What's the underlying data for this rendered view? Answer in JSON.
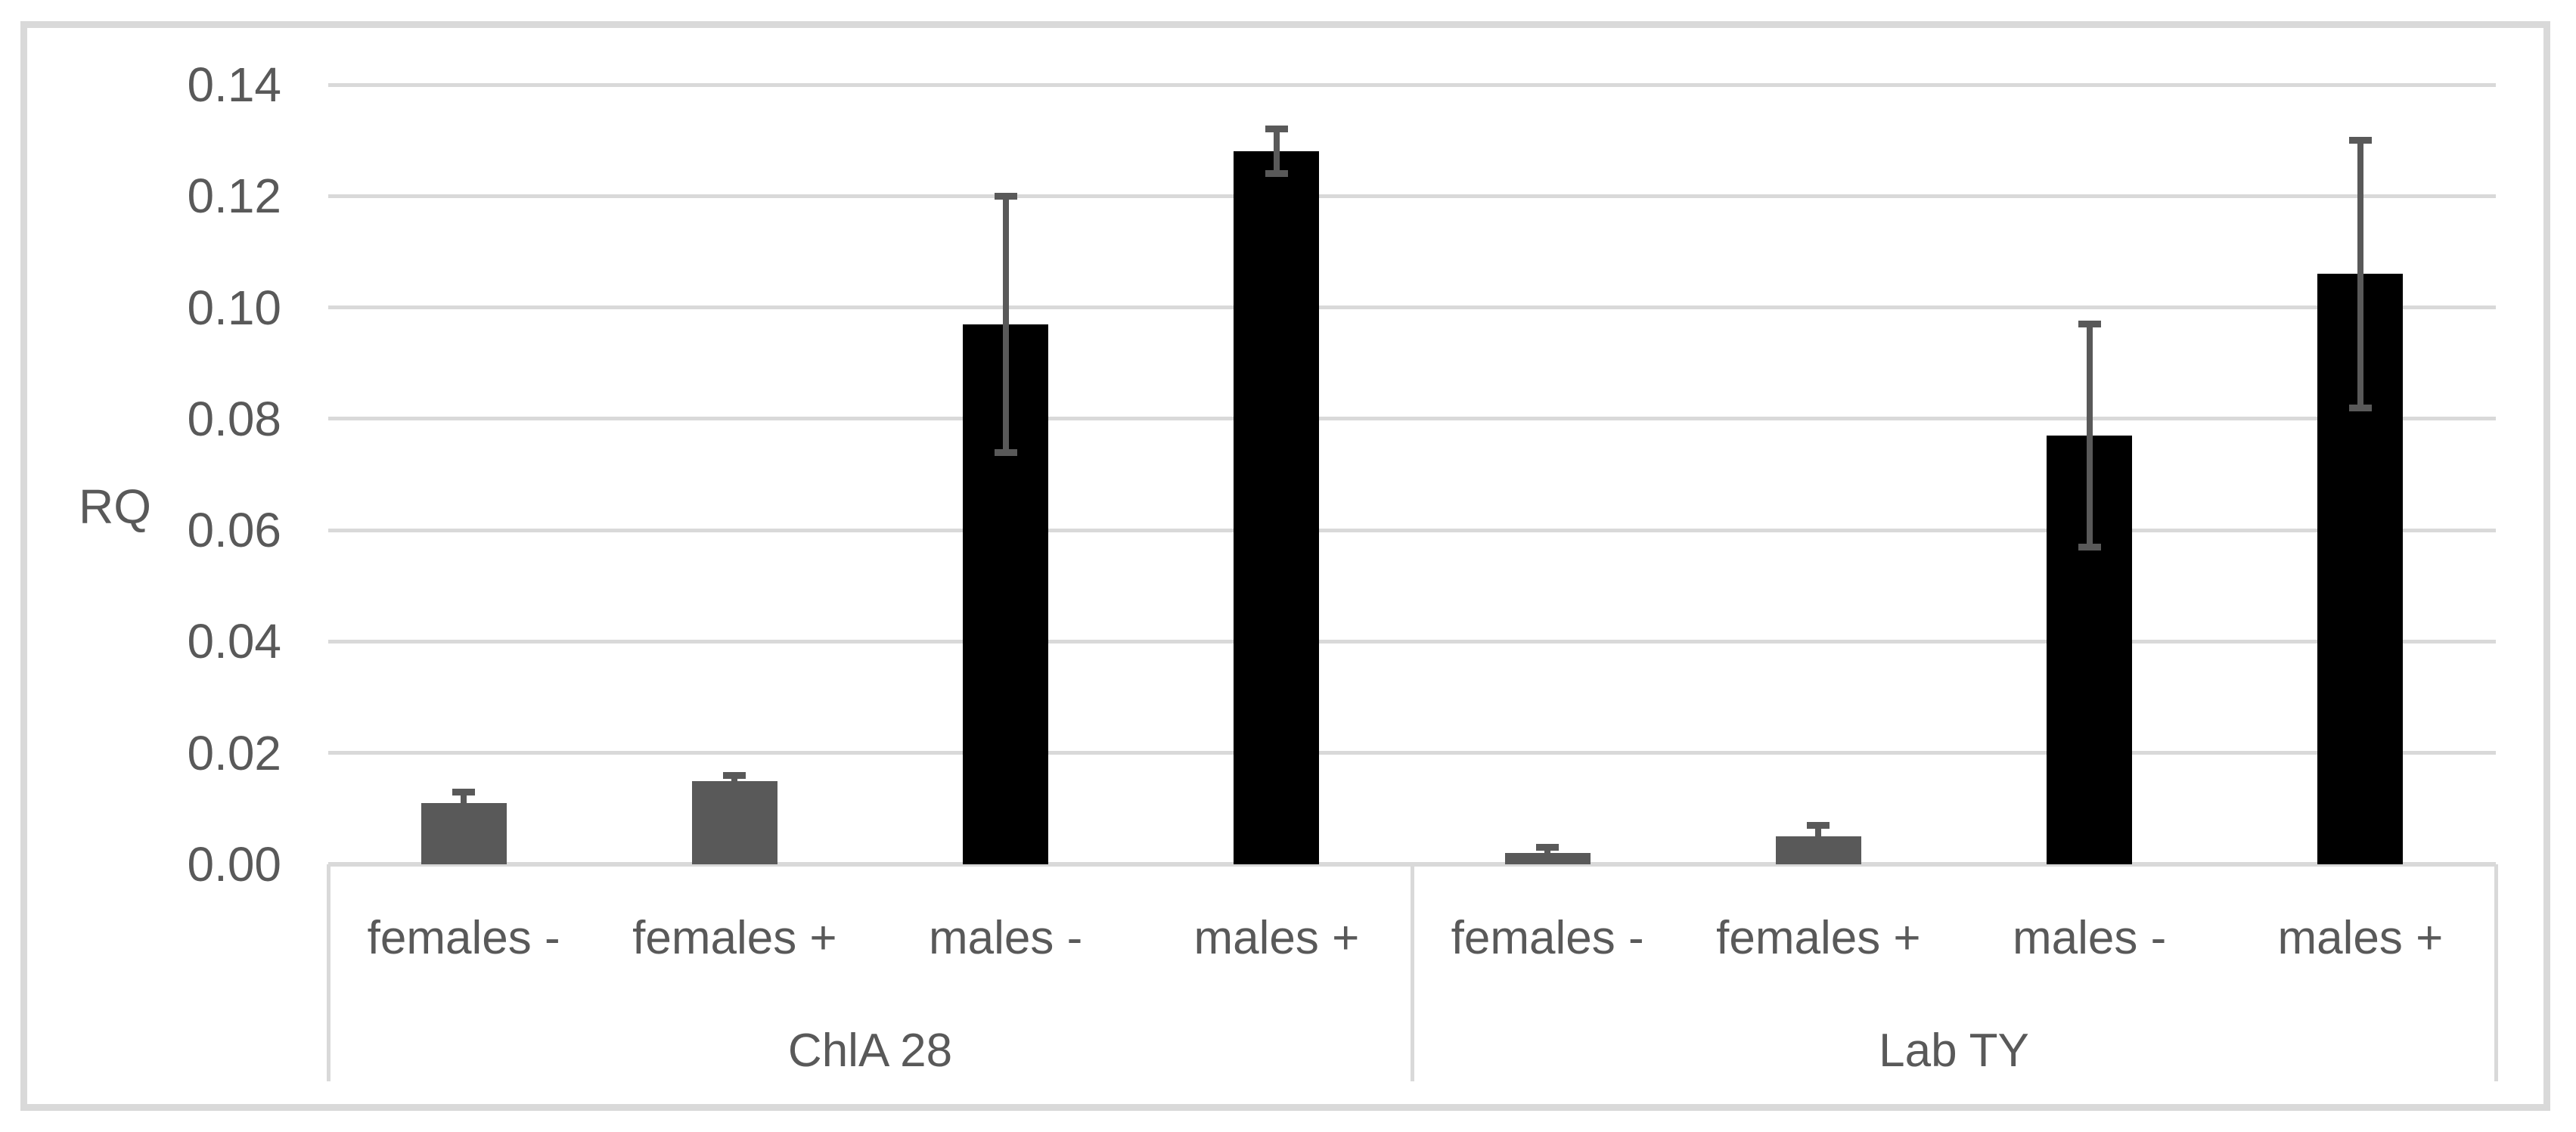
{
  "chart_data": {
    "type": "bar",
    "title": "",
    "ylabel": "RQ",
    "xlabel": "",
    "ylim": [
      0,
      0.14
    ],
    "ytick_step": 0.02,
    "ytick_labels": [
      "0.00",
      "0.02",
      "0.04",
      "0.06",
      "0.08",
      "0.10",
      "0.12",
      "0.14"
    ],
    "grid": true,
    "legend": "none",
    "categories_per_group": [
      "females -",
      "females +",
      "males -",
      "males +"
    ],
    "groups": [
      {
        "label": "ChlA 28",
        "categories": [
          "females -",
          "females +",
          "males -",
          "males +"
        ],
        "values": [
          0.011,
          0.015,
          0.097,
          0.128
        ],
        "errors": [
          0.002,
          0.001,
          0.023,
          0.004
        ],
        "bar_colors": [
          "#595959",
          "#595959",
          "#000000",
          "#000000"
        ]
      },
      {
        "label": "Lab TY",
        "categories": [
          "females -",
          "females +",
          "males -",
          "males +"
        ],
        "values": [
          0.002,
          0.005,
          0.077,
          0.106
        ],
        "errors": [
          0.001,
          0.002,
          0.02,
          0.024
        ],
        "bar_colors": [
          "#595959",
          "#595959",
          "#000000",
          "#000000"
        ]
      }
    ],
    "colors": {
      "female_bar": "#595959",
      "male_bar": "#000000",
      "error_bar": "#595959",
      "gridline": "#d9d9d9",
      "axis_line": "#d9d9d9",
      "frame_border": "#d9d9d9",
      "text": "#595959",
      "background": "#ffffff"
    }
  }
}
